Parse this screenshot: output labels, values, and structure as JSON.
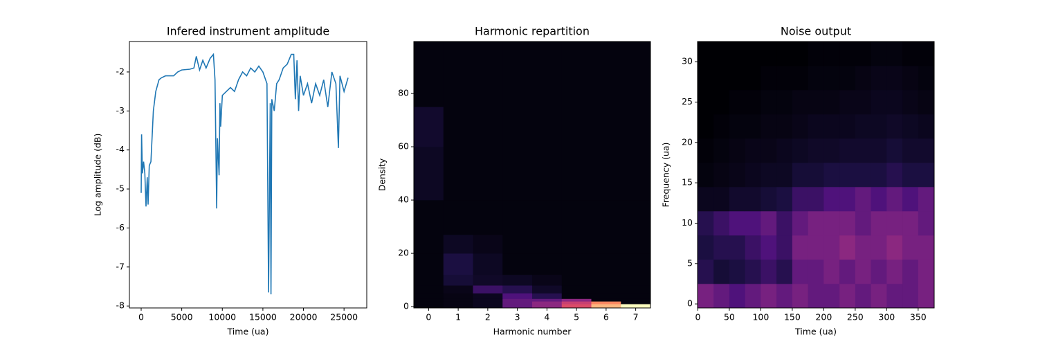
{
  "chart_data": [
    {
      "type": "line",
      "title": "Infered instrument amplitude",
      "xlabel": "Time (ua)",
      "ylabel": "Log amplitude (dB)",
      "color": "#1f77b4",
      "x": [
        0,
        50,
        150,
        300,
        450,
        600,
        750,
        850,
        1000,
        1200,
        1500,
        1800,
        2200,
        2500,
        3000,
        4000,
        4500,
        5000,
        6000,
        6500,
        6800,
        7200,
        7600,
        8000,
        8500,
        8900,
        9100,
        9300,
        9400,
        9600,
        9700,
        9800,
        10000,
        10500,
        11000,
        11500,
        12000,
        12500,
        13000,
        13500,
        14000,
        14500,
        15000,
        15500,
        15700,
        15900,
        16000,
        16100,
        16400,
        16700,
        17000,
        17500,
        18000,
        18500,
        18800,
        19000,
        19200,
        19400,
        19600,
        20000,
        20500,
        21000,
        21500,
        22000,
        22500,
        23000,
        23500,
        24000,
        24300,
        24500,
        25000,
        25500
      ],
      "values": [
        -5.1,
        -3.6,
        -4.6,
        -4.3,
        -4.6,
        -5.45,
        -4.7,
        -5.4,
        -4.4,
        -4.3,
        -3,
        -2.5,
        -2.2,
        -2.15,
        -2.1,
        -2.1,
        -2.0,
        -1.95,
        -1.93,
        -1.9,
        -1.6,
        -1.95,
        -1.7,
        -1.9,
        -1.65,
        -1.55,
        -2.2,
        -5.5,
        -3.7,
        -4.65,
        -2.8,
        -3.4,
        -2.6,
        -2.5,
        -2.4,
        -2.5,
        -2.2,
        -2.0,
        -2.1,
        -1.9,
        -2.0,
        -1.85,
        -2.0,
        -2.3,
        -7.65,
        -2.8,
        -7.7,
        -2.7,
        -3.0,
        -2.3,
        -2.2,
        -1.9,
        -1.8,
        -1.55,
        -1.55,
        -2.7,
        -1.7,
        -3.0,
        -2.1,
        -2.6,
        -2.3,
        -2.8,
        -2.3,
        -2.6,
        -2.2,
        -2.9,
        -2.0,
        -2.3,
        -3.95,
        -2.1,
        -2.5,
        -2.15
      ],
      "xlim": [
        -1450,
        27800
      ],
      "xticks": [
        0,
        5000,
        10000,
        15000,
        20000,
        25000
      ],
      "ylim": [
        -8.05,
        -1.22
      ],
      "yticks": [
        -8,
        -7,
        -6,
        -5,
        -4,
        -3,
        -2
      ]
    },
    {
      "type": "heatmap",
      "title": "Harmonic repartition",
      "xlabel": "Harmonic number",
      "ylabel": "Density",
      "colormap": "magma",
      "xbins": [
        -0.5,
        0.5,
        1.5,
        2.5,
        3.5,
        4.5,
        5.5,
        6.5,
        7.5
      ],
      "ybins": [
        -0.5,
        1,
        2,
        3,
        5,
        8,
        12,
        20,
        27,
        40,
        60,
        75,
        99.5
      ],
      "z": [
        [
          0.02,
          0.03,
          0.05,
          0.3,
          0.4,
          0.6,
          0.85,
          1.0
        ],
        [
          0.02,
          0.03,
          0.05,
          0.3,
          0.4,
          0.55,
          0.75,
          0.02
        ],
        [
          0.02,
          0.03,
          0.05,
          0.3,
          0.3,
          0.4,
          0.02,
          0.02
        ],
        [
          0.02,
          0.03,
          0.05,
          0.25,
          0.15,
          0.02,
          0.02,
          0.02
        ],
        [
          0.02,
          0.04,
          0.2,
          0.15,
          0.07,
          0.02,
          0.02,
          0.02
        ],
        [
          0.02,
          0.1,
          0.07,
          0.06,
          0.04,
          0.02,
          0.02,
          0.02
        ],
        [
          0.02,
          0.12,
          0.06,
          0.02,
          0.02,
          0.02,
          0.02,
          0.02
        ],
        [
          0.02,
          0.06,
          0.04,
          0.02,
          0.02,
          0.02,
          0.02,
          0.02
        ],
        [
          0.02,
          0.02,
          0.02,
          0.02,
          0.02,
          0.02,
          0.02,
          0.02
        ],
        [
          0.06,
          0.02,
          0.02,
          0.02,
          0.02,
          0.02,
          0.02,
          0.02
        ],
        [
          0.08,
          0.02,
          0.02,
          0.02,
          0.02,
          0.02,
          0.02,
          0.02
        ],
        [
          0.02,
          0.02,
          0.02,
          0.02,
          0.02,
          0.02,
          0.02,
          0.02
        ]
      ],
      "xlim": [
        -0.5,
        7.5
      ],
      "xticks": [
        0,
        1,
        2,
        3,
        4,
        5,
        6,
        7
      ],
      "ylim": [
        -0.5,
        99.5
      ],
      "yticks": [
        0,
        20,
        40,
        60,
        80
      ]
    },
    {
      "type": "heatmap",
      "title": "Noise output",
      "xlabel": "Time (ua)",
      "ylabel": "Frequency (ua)",
      "colormap": "magma",
      "xbins": [
        -0.5,
        25,
        50,
        75,
        100,
        125,
        150,
        175,
        200,
        225,
        250,
        275,
        300,
        325,
        350,
        375.5
      ],
      "ybins": [
        -0.5,
        2.5,
        5.5,
        8.5,
        11.5,
        14.5,
        17.5,
        20.5,
        23.5,
        26.5,
        29.5,
        32.5
      ],
      "z": [
        [
          0.35,
          0.3,
          0.25,
          0.3,
          0.35,
          0.3,
          0.35,
          0.3,
          0.3,
          0.35,
          0.3,
          0.35,
          0.3,
          0.3,
          0.35
        ],
        [
          0.15,
          0.1,
          0.12,
          0.15,
          0.2,
          0.15,
          0.3,
          0.3,
          0.35,
          0.3,
          0.35,
          0.3,
          0.35,
          0.3,
          0.35
        ],
        [
          0.12,
          0.15,
          0.15,
          0.2,
          0.25,
          0.2,
          0.35,
          0.35,
          0.35,
          0.4,
          0.35,
          0.35,
          0.4,
          0.35,
          0.35
        ],
        [
          0.15,
          0.2,
          0.25,
          0.25,
          0.3,
          0.2,
          0.3,
          0.35,
          0.35,
          0.35,
          0.3,
          0.35,
          0.35,
          0.35,
          0.3
        ],
        [
          0.05,
          0.05,
          0.08,
          0.08,
          0.1,
          0.12,
          0.2,
          0.2,
          0.25,
          0.25,
          0.3,
          0.25,
          0.3,
          0.25,
          0.3
        ],
        [
          0.02,
          0.03,
          0.04,
          0.05,
          0.06,
          0.06,
          0.1,
          0.1,
          0.12,
          0.12,
          0.12,
          0.12,
          0.15,
          0.12,
          0.12
        ],
        [
          0.01,
          0.02,
          0.03,
          0.04,
          0.04,
          0.05,
          0.06,
          0.07,
          0.07,
          0.08,
          0.08,
          0.08,
          0.1,
          0.08,
          0.08
        ],
        [
          0,
          0.01,
          0.02,
          0.02,
          0.03,
          0.03,
          0.04,
          0.05,
          0.05,
          0.05,
          0.06,
          0.06,
          0.07,
          0.06,
          0.05
        ],
        [
          0,
          0,
          0.01,
          0.01,
          0.02,
          0.02,
          0.03,
          0.03,
          0.03,
          0.04,
          0.04,
          0.05,
          0.05,
          0.04,
          0.03
        ],
        [
          0,
          0,
          0,
          0,
          0.01,
          0.01,
          0.01,
          0.02,
          0.02,
          0.02,
          0.03,
          0.04,
          0.04,
          0.03,
          0.02
        ],
        [
          0,
          0,
          0,
          0,
          0,
          0,
          0,
          0.01,
          0.01,
          0.01,
          0.01,
          0.02,
          0.02,
          0.01,
          0.01
        ]
      ],
      "xlim": [
        -0.5,
        375.5
      ],
      "xticks": [
        0,
        50,
        100,
        150,
        200,
        250,
        300,
        350
      ],
      "ylim": [
        -0.5,
        32.5
      ],
      "yticks": [
        0,
        5,
        10,
        15,
        20,
        25,
        30
      ]
    }
  ]
}
